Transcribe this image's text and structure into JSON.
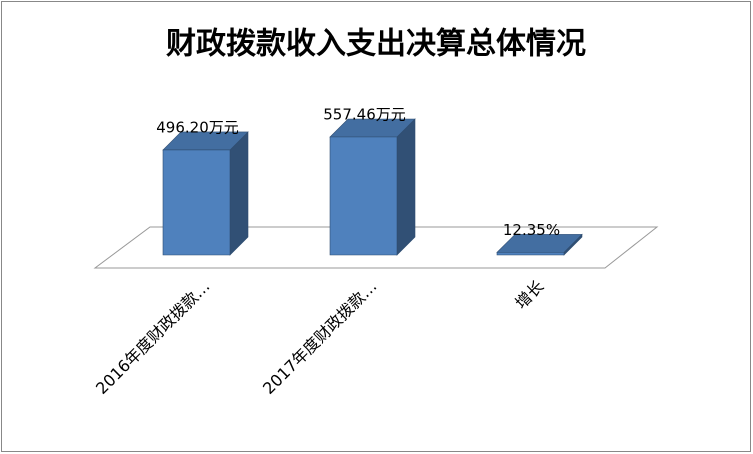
{
  "chart_data": {
    "type": "bar3d",
    "title": "财政拨款收入支出决算总体情况",
    "categories": [
      "2016年度财政拨款…",
      "2017年度财政拨款…",
      "增长"
    ],
    "values": [
      496.2,
      557.46,
      12.35
    ],
    "value_labels": [
      "496.20万元",
      "557.46万元",
      "12.35%"
    ],
    "color": "#4f81bd"
  }
}
